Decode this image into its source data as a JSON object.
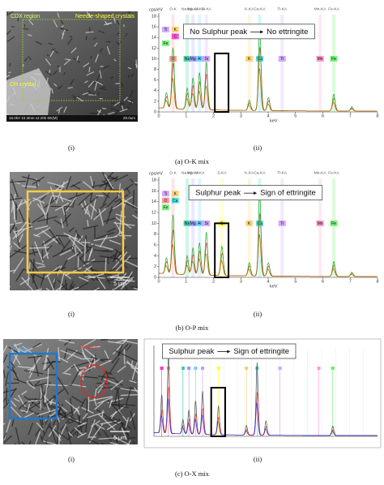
{
  "panels": [
    {
      "image": {
        "labels": [
          "CDX region",
          "Needle-shaped crystals",
          "CH crystal"
        ],
        "scale_info": "15.0kV 10.3mm x2.20k SE(M)",
        "scale_bar": "20.0um"
      },
      "image_label": "(i)",
      "spectrum_label": "(ii)",
      "caption": "(a) O-K mix",
      "spectrum": {
        "y_unit": "cps/eV",
        "x_unit": "keV",
        "yticks": [
          0,
          2,
          4,
          6,
          8,
          10,
          12,
          14,
          16,
          18
        ],
        "xticks": [
          0,
          1,
          2,
          3,
          4,
          5,
          6,
          7,
          8
        ],
        "line_labels": [
          "O-K",
          "Na-KA",
          "Mg-KA",
          "Al-KA",
          "Si-KA",
          "K-KA",
          "Ca-KA",
          "Ti-KA",
          "Mn-KA",
          "Fe-KA"
        ],
        "peak_labels": [
          "Ti",
          "C",
          "Fe",
          "K",
          "O",
          "Mn",
          "Na",
          "Mg",
          "Al",
          "Si",
          "K",
          "Ca",
          "Ti",
          "Mn",
          "Fe"
        ],
        "annotation": {
          "cause": "No Sulphur peak",
          "effect": "No ettringite"
        }
      }
    },
    {
      "image": {
        "labels": [],
        "scale_bar": "5 μm"
      },
      "image_label": "(i)",
      "spectrum_label": "(ii)",
      "caption": "(b) O-P mix",
      "spectrum": {
        "y_unit": "cps/eV",
        "x_unit": "keV",
        "yticks": [
          0,
          2,
          4,
          6,
          8,
          10,
          12,
          14,
          16,
          18
        ],
        "xticks": [
          0,
          1,
          2,
          3,
          4,
          5,
          6,
          7,
          8
        ],
        "line_labels": [
          "O-K",
          "Na-KA",
          "Mg-KA",
          "Al-KA",
          "S-KA",
          "K-KA",
          "Ca-KA",
          "Ti-KA",
          "Mn-KA",
          "Fe-KA"
        ],
        "peak_labels": [
          "Ti",
          "Ca",
          "Fe",
          "K",
          "O",
          "Mn",
          "Na",
          "Mg",
          "Al",
          "Si",
          "S",
          "K",
          "Ca",
          "Ti",
          "Mn",
          "Fe"
        ],
        "annotation": {
          "cause": "Sulphur peak",
          "effect": "Sign of ettringite"
        }
      }
    },
    {
      "image": {
        "labels": [
          "Area 2",
          "Area 1"
        ],
        "scale_bar": "5 μm"
      },
      "image_label": "(i)",
      "spectrum_label": "(ii)",
      "caption": "(c) O-X mix",
      "spectrum": {
        "annotation": {
          "cause": "Sulphur peak",
          "effect": "Sign of ettringite"
        }
      }
    }
  ]
}
